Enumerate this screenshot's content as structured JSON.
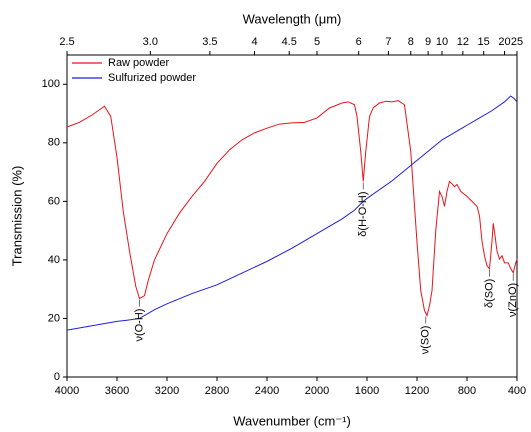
{
  "chart_data": {
    "type": "line",
    "xlabel": "Wavenumber (cm⁻¹)",
    "ylabel": "Transmission (%)",
    "x2label": "Wavelength (μm)",
    "xlim": [
      4000,
      400
    ],
    "ylim": [
      0,
      110
    ],
    "xticks": [
      4000,
      3600,
      3200,
      2800,
      2400,
      2000,
      1600,
      1200,
      800,
      400
    ],
    "yticks": [
      0,
      20,
      40,
      60,
      80,
      100
    ],
    "x2ticks": [
      2.5,
      {
        "value": 3,
        "label": "3.0"
      },
      3.5,
      4,
      4.5,
      5,
      6,
      7,
      8,
      9,
      10,
      12,
      15,
      20,
      25
    ],
    "legend": "upper left",
    "series": [
      {
        "name": "Raw powder",
        "color": "#e8141b",
        "x": [
          4000,
          3900,
          3800,
          3750,
          3700,
          3650,
          3600,
          3550,
          3500,
          3450,
          3420,
          3380,
          3350,
          3300,
          3200,
          3100,
          3000,
          2900,
          2800,
          2700,
          2600,
          2500,
          2400,
          2300,
          2200,
          2100,
          2000,
          1900,
          1800,
          1750,
          1700,
          1680,
          1650,
          1630,
          1610,
          1580,
          1550,
          1500,
          1450,
          1400,
          1350,
          1300,
          1250,
          1200,
          1170,
          1140,
          1120,
          1100,
          1080,
          1050,
          1020,
          1000,
          980,
          960,
          940,
          920,
          900,
          880,
          850,
          800,
          760,
          720,
          700,
          680,
          660,
          640,
          620,
          600,
          590,
          575,
          560,
          540,
          520,
          500,
          470,
          450,
          430,
          410,
          400
        ],
        "values": [
          85.4,
          87,
          89.5,
          91,
          92.5,
          89,
          75,
          56.6,
          43,
          31,
          26.8,
          27.8,
          33,
          40,
          49,
          56,
          61.7,
          66.8,
          73,
          77.6,
          81,
          83.4,
          85,
          86.4,
          86.8,
          87,
          88.5,
          91.9,
          93.6,
          94,
          93,
          89,
          77,
          66.8,
          77,
          89,
          92,
          93.6,
          94.2,
          94,
          94.4,
          93,
          77,
          46,
          29.5,
          22.7,
          21,
          24.4,
          29.5,
          50,
          63.4,
          61.7,
          58.3,
          63.4,
          66.8,
          66,
          65,
          65.8,
          63.4,
          61.7,
          60,
          58.3,
          55,
          46.4,
          41.4,
          38,
          37,
          46.4,
          52.5,
          48,
          43,
          40.3,
          41.4,
          39,
          39,
          37,
          35.6,
          39,
          40.3
        ]
      },
      {
        "name": "Sulfurized powder",
        "color": "#1f1fe0",
        "x": [
          4000,
          3800,
          3600,
          3500,
          3420,
          3300,
          3200,
          3000,
          2800,
          2600,
          2400,
          2200,
          2000,
          1800,
          1700,
          1630,
          1600,
          1500,
          1400,
          1300,
          1200,
          1100,
          1000,
          900,
          800,
          700,
          600,
          500,
          450,
          420,
          400
        ],
        "values": [
          16,
          17.5,
          19,
          19.5,
          20,
          23,
          25,
          28.5,
          31.5,
          35.5,
          39.5,
          44,
          49,
          54,
          57,
          60,
          61,
          64,
          67,
          70.5,
          74,
          77.5,
          81,
          83.5,
          86,
          88.5,
          91,
          94,
          96,
          95,
          94
        ]
      }
    ],
    "annotations": [
      {
        "text": "ν(O-H)",
        "x": 3420,
        "y": 26.8
      },
      {
        "text": "δ(H-O-H)",
        "x": 1630,
        "y": 66.8
      },
      {
        "text": "ν(SO)",
        "x": 1130,
        "y": 21
      },
      {
        "text": "δ(SO)",
        "x": 620,
        "y": 37
      },
      {
        "text": "ν(ZnO)",
        "x": 430,
        "y": 35.6
      }
    ]
  }
}
